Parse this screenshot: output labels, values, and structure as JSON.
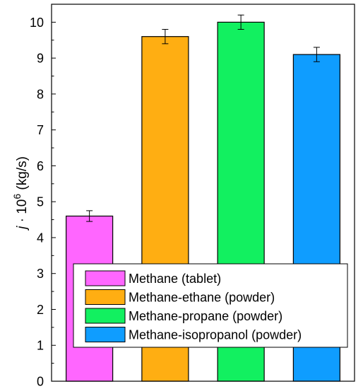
{
  "chart_data": {
    "type": "bar",
    "ylabel_prefix": "j",
    "ylabel_middle": " · 10",
    "ylabel_exp": "6",
    "ylabel_suffix": " (kg/s)",
    "ylim": [
      0,
      10.5
    ],
    "yticks": [
      "0",
      "1",
      "2",
      "3",
      "4",
      "5",
      "6",
      "7",
      "8",
      "9",
      "10"
    ],
    "grid": false,
    "legend_position": "bottom-right",
    "series": [
      {
        "name": "Methane (tablet)",
        "value": 4.6,
        "error": 0.15,
        "color": "#ff66ff"
      },
      {
        "name": "Methane-ethane (powder)",
        "value": 9.6,
        "error": 0.2,
        "color": "#ffae12"
      },
      {
        "name": "Methane-propane (powder)",
        "value": 10.0,
        "error": 0.2,
        "color": "#12f060"
      },
      {
        "name": "Methane-isopropanol (powder)",
        "value": 9.1,
        "error": 0.2,
        "color": "#0f9dff"
      }
    ]
  }
}
